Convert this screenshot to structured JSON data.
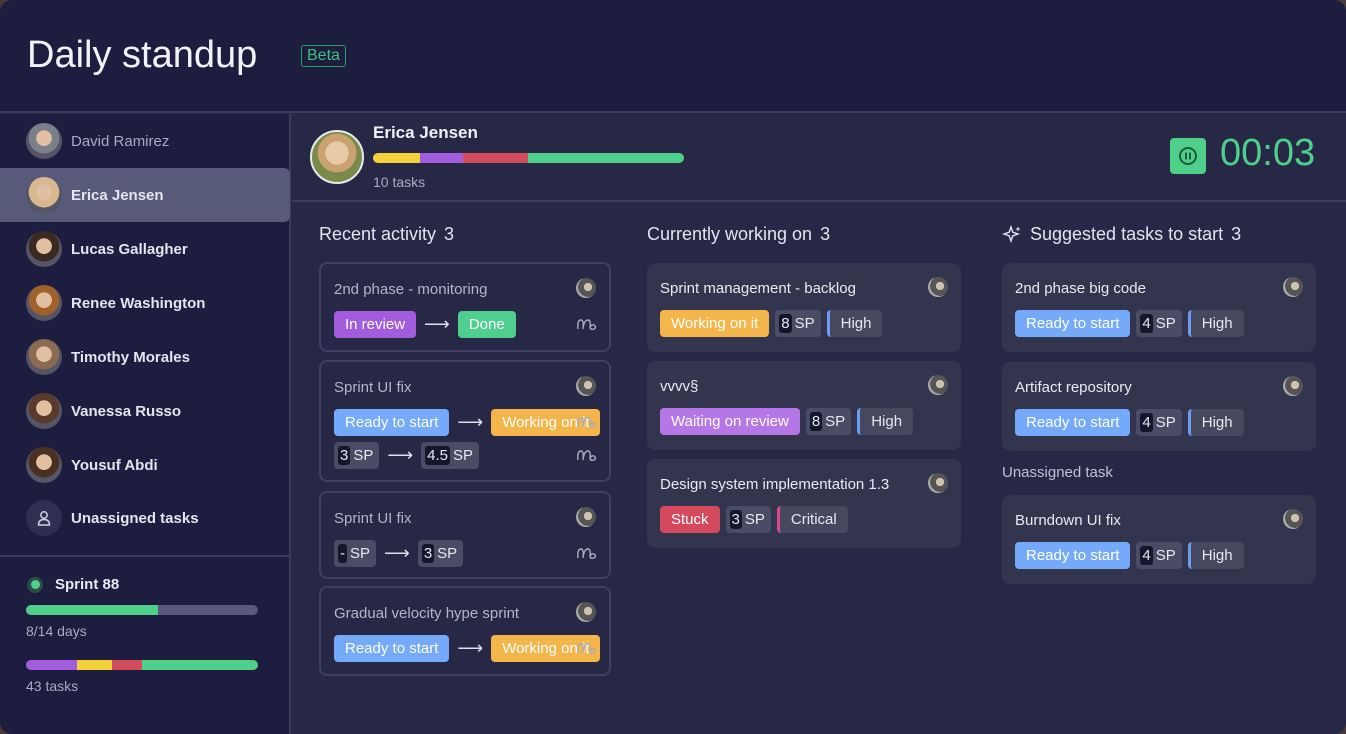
{
  "header": {
    "title": "Daily standup",
    "badge": "Beta"
  },
  "sidebar": {
    "members": [
      {
        "name": "David Ramirez",
        "selected": false
      },
      {
        "name": "Erica Jensen",
        "selected": true
      },
      {
        "name": "Lucas Gallagher",
        "selected": false
      },
      {
        "name": "Renee Washington",
        "selected": false
      },
      {
        "name": "Timothy Morales",
        "selected": false
      },
      {
        "name": "Vanessa Russo",
        "selected": false
      },
      {
        "name": "Yousuf Abdi",
        "selected": false
      }
    ],
    "unassigned": "Unassigned tasks",
    "sprint": {
      "name": "Sprint 88",
      "days": "8/14 days",
      "days_progress": 0.571,
      "tasks": "43 tasks",
      "task_breakdown": [
        {
          "color": "#a25ddc",
          "frac": 0.22
        },
        {
          "color": "#f5d13b",
          "frac": 0.15
        },
        {
          "color": "#d14d5e",
          "frac": 0.13
        },
        {
          "color": "#4fd08a",
          "frac": 0.5
        }
      ]
    }
  },
  "profile": {
    "name": "Erica Jensen",
    "tasks": "10 tasks",
    "task_breakdown": [
      {
        "color": "#f5d13b",
        "frac": 0.15
      },
      {
        "color": "#a25ddc",
        "frac": 0.14
      },
      {
        "color": "#d14d5e",
        "frac": 0.21
      },
      {
        "color": "#4fd08a",
        "frac": 0.5
      }
    ],
    "timer": "00:03"
  },
  "colors": {
    "accent": "#4fd08a",
    "in_review": "#a25ddc",
    "done": "#4fcf8f",
    "ready": "#75a9f9",
    "working": "#f4b54a",
    "waiting": "#b577e6",
    "stuck": "#d5495c"
  },
  "recent": {
    "title": "Recent activity",
    "count": "3",
    "items": [
      {
        "title": "2nd phase - monitoring",
        "from": "In review",
        "from_color": "#a25ddc",
        "to": "Done",
        "to_color": "#4fcf8f"
      },
      {
        "title": "Sprint UI fix",
        "from": "Ready to start",
        "from_color": "#75a9f9",
        "to": "Working on it",
        "to_color": "#f4b54a",
        "sp_from": "3",
        "sp_to": "4.5",
        "sp_unit": "SP"
      },
      {
        "title": "Sprint UI fix",
        "sp_from": "-",
        "sp_to": "3",
        "sp_unit": "SP"
      },
      {
        "title": "Gradual velocity hype sprint",
        "from": "Ready to start",
        "from_color": "#75a9f9",
        "to": "Working on it",
        "to_color": "#f4b54a"
      }
    ]
  },
  "working": {
    "title": "Currently working on",
    "count": "3",
    "items": [
      {
        "title": "Sprint management - backlog",
        "status": "Working on it",
        "status_color": "#f4b54a",
        "sp": "8",
        "sp_unit": "SP",
        "priority": "High"
      },
      {
        "title": "vvvv§",
        "status": "Waiting on review",
        "status_color": "#b577e6",
        "sp": "8",
        "sp_unit": "SP",
        "priority": "High"
      },
      {
        "title": "Design system implementation 1.3",
        "status": "Stuck",
        "status_color": "#d5495c",
        "sp": "3",
        "sp_unit": "SP",
        "priority": "Critical"
      }
    ]
  },
  "suggested": {
    "title": "Suggested tasks to start",
    "count": "3",
    "unassigned_label": "Unassigned task",
    "items": [
      {
        "title": "2nd phase big code",
        "status": "Ready to start",
        "status_color": "#75a9f9",
        "sp": "4",
        "sp_unit": "SP",
        "priority": "High"
      },
      {
        "title": "Artifact repository",
        "status": "Ready to start",
        "status_color": "#75a9f9",
        "sp": "4",
        "sp_unit": "SP",
        "priority": "High"
      },
      {
        "title": "Burndown UI fix",
        "status": "Ready to start",
        "status_color": "#75a9f9",
        "sp": "4",
        "sp_unit": "SP",
        "priority": "High"
      }
    ]
  }
}
